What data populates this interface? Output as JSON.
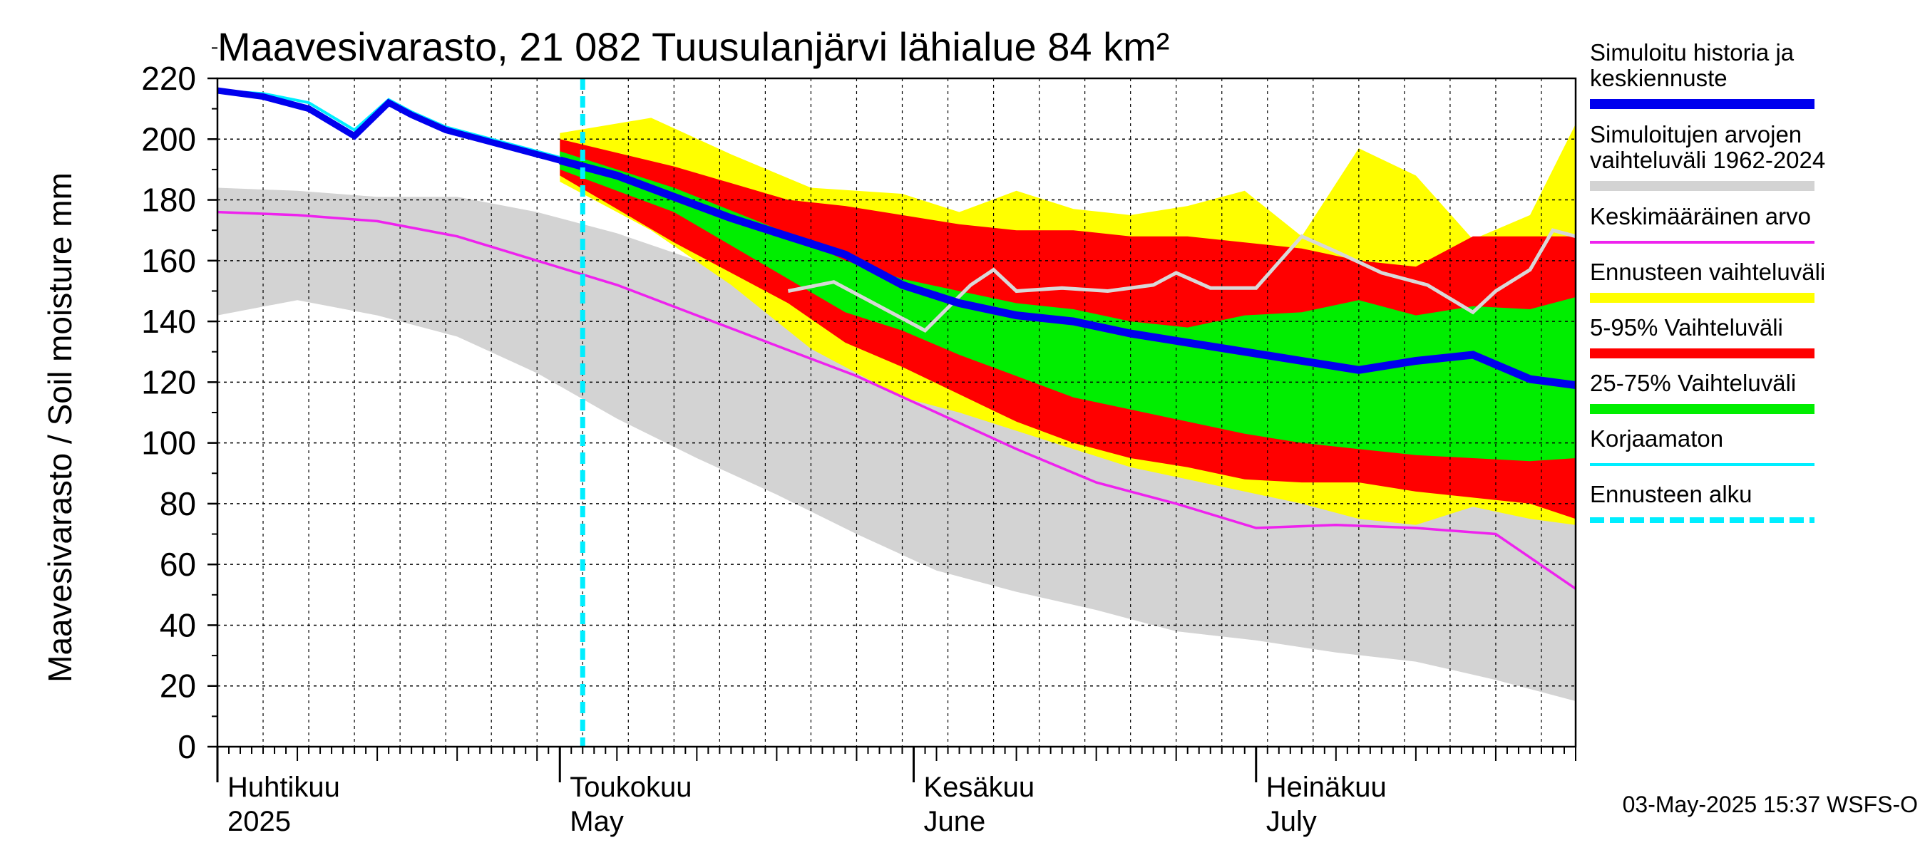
{
  "chart_data": {
    "type": "area",
    "title": "Maavesivarasto, 21 082 Tuusulanjärvi lähialue 84 km²",
    "ylabel": "Maavesivarasto / Soil moisture   mm",
    "ylim": [
      0,
      220
    ],
    "yticks": [
      0,
      20,
      40,
      60,
      80,
      100,
      120,
      140,
      160,
      180,
      200,
      220
    ],
    "x_start": "2025-04-01",
    "x_end": "2025-07-31",
    "forecast_start": "2025-05-03",
    "timestamp": "03-May-2025 15:37 WSFS-O",
    "months": [
      {
        "name_fi": "Huhtikuu",
        "name_en": "2025",
        "day": 1
      },
      {
        "name_fi": "Toukokuu",
        "name_en": "May",
        "day": 31
      },
      {
        "name_fi": "Kesäkuu",
        "name_en": "June",
        "day": 62
      },
      {
        "name_fi": "Heinäkuu",
        "name_en": "July",
        "day": 92
      }
    ],
    "legend": [
      {
        "label": "Simuloitu historia ja keskiennuste",
        "color": "#0000ee",
        "style": "thick"
      },
      {
        "label": "Simuloitujen arvojen vaihteluväli 1962-2024",
        "color": "#d3d3d3",
        "style": "thick"
      },
      {
        "label": "Keskimääräinen arvo",
        "color": "#ee22ee",
        "style": "thin"
      },
      {
        "label": "Ennusteen vaihteluväli",
        "color": "#ffff00",
        "style": "thick"
      },
      {
        "label": "5-95% Vaihteluväli",
        "color": "#ff0000",
        "style": "thick"
      },
      {
        "label": "25-75% Vaihteluväli",
        "color": "#00ee00",
        "style": "thick"
      },
      {
        "label": "Korjaamaton",
        "color": "#00eeff",
        "style": "thin"
      },
      {
        "label": "Ennusteen alku",
        "color": "#00eeff",
        "style": "dashed"
      }
    ],
    "series": {
      "hist_range_upper": {
        "day": [
          0,
          7,
          14,
          21,
          28,
          35,
          42,
          49,
          56,
          63,
          70,
          77,
          84,
          91,
          98,
          105,
          112,
          119
        ],
        "value": [
          184,
          183,
          181,
          181,
          176,
          169,
          160,
          150,
          142,
          135,
          125,
          120,
          116,
          110,
          106,
          102,
          98,
          96
        ]
      },
      "hist_range_lower": {
        "day": [
          0,
          7,
          14,
          21,
          28,
          35,
          42,
          49,
          56,
          63,
          70,
          77,
          84,
          91,
          98,
          105,
          112,
          119
        ],
        "value": [
          142,
          147,
          142,
          135,
          123,
          108,
          95,
          83,
          70,
          58,
          51,
          45,
          38,
          35,
          31,
          28,
          22,
          15
        ]
      },
      "mean": {
        "day": [
          0,
          7,
          14,
          21,
          28,
          35,
          42,
          49,
          56,
          63,
          70,
          77,
          84,
          91,
          98,
          105,
          112,
          119
        ],
        "value": [
          176,
          175,
          173,
          168,
          160,
          152,
          142,
          132,
          122,
          110,
          98,
          87,
          80,
          72,
          73,
          72,
          70,
          52
        ]
      },
      "history": {
        "day": [
          0,
          4,
          8,
          12,
          15,
          17,
          20,
          25,
          30
        ],
        "value": [
          216,
          214,
          210,
          201,
          212,
          208,
          203,
          198,
          193
        ]
      },
      "uncorrected": {
        "day": [
          0,
          4,
          8,
          12,
          15,
          17,
          20,
          25,
          30
        ],
        "value": [
          216,
          215,
          212,
          203,
          213,
          209,
          204,
          199,
          194
        ]
      },
      "median_forecast": {
        "day": [
          30,
          35,
          40,
          45,
          50,
          55,
          60,
          65,
          70,
          75,
          80,
          85,
          90,
          95,
          100,
          105,
          110,
          115,
          119
        ],
        "value": [
          193,
          188,
          181,
          174,
          168,
          162,
          152,
          146,
          142,
          140,
          136,
          133,
          130,
          127,
          124,
          127,
          129,
          121,
          119
        ]
      },
      "forecast_max": {
        "day": [
          30,
          38,
          45,
          52,
          60,
          65,
          70,
          75,
          80,
          85,
          90,
          95,
          100,
          105,
          110,
          115,
          119
        ],
        "value": [
          202,
          207,
          195,
          184,
          182,
          176,
          183,
          177,
          175,
          178,
          183,
          168,
          197,
          188,
          167,
          175,
          205
        ]
      },
      "forecast_min": {
        "day": [
          30,
          38,
          45,
          52,
          60,
          65,
          70,
          75,
          80,
          85,
          90,
          95,
          100,
          105,
          110,
          115,
          119
        ],
        "value": [
          186,
          170,
          152,
          131,
          115,
          110,
          104,
          98,
          92,
          88,
          84,
          80,
          75,
          73,
          79,
          75,
          73
        ]
      },
      "p95": {
        "day": [
          30,
          40,
          50,
          55,
          60,
          65,
          70,
          75,
          80,
          85,
          90,
          95,
          100,
          105,
          110,
          115,
          119
        ],
        "value": [
          200,
          191,
          180,
          178,
          175,
          172,
          170,
          170,
          168,
          168,
          166,
          164,
          160,
          158,
          168,
          168,
          168
        ]
      },
      "p5": {
        "day": [
          30,
          40,
          50,
          55,
          60,
          65,
          70,
          75,
          80,
          85,
          90,
          95,
          100,
          105,
          110,
          115,
          119
        ],
        "value": [
          188,
          166,
          146,
          133,
          125,
          116,
          107,
          100,
          95,
          92,
          88,
          87,
          87,
          84,
          82,
          80,
          75
        ]
      },
      "p75": {
        "day": [
          30,
          40,
          50,
          55,
          60,
          65,
          70,
          75,
          80,
          85,
          90,
          95,
          100,
          105,
          110,
          115,
          119
        ],
        "value": [
          196,
          184,
          169,
          160,
          154,
          150,
          146,
          144,
          140,
          138,
          142,
          143,
          147,
          142,
          145,
          144,
          148
        ]
      },
      "p25": {
        "day": [
          30,
          40,
          50,
          55,
          60,
          65,
          70,
          75,
          80,
          85,
          90,
          95,
          100,
          105,
          110,
          115,
          119
        ],
        "value": [
          190,
          176,
          154,
          143,
          137,
          129,
          122,
          115,
          111,
          107,
          103,
          100,
          98,
          96,
          95,
          94,
          95
        ]
      },
      "grey_trace": {
        "day": [
          50,
          54,
          58,
          62,
          66,
          68,
          70,
          74,
          78,
          82,
          84,
          87,
          91,
          95,
          98,
          102,
          106,
          110,
          112,
          115,
          117,
          119
        ],
        "value": [
          150,
          153,
          145,
          137,
          152,
          157,
          150,
          151,
          150,
          152,
          156,
          151,
          151,
          168,
          163,
          156,
          152,
          143,
          150,
          157,
          170,
          168
        ]
      }
    }
  }
}
